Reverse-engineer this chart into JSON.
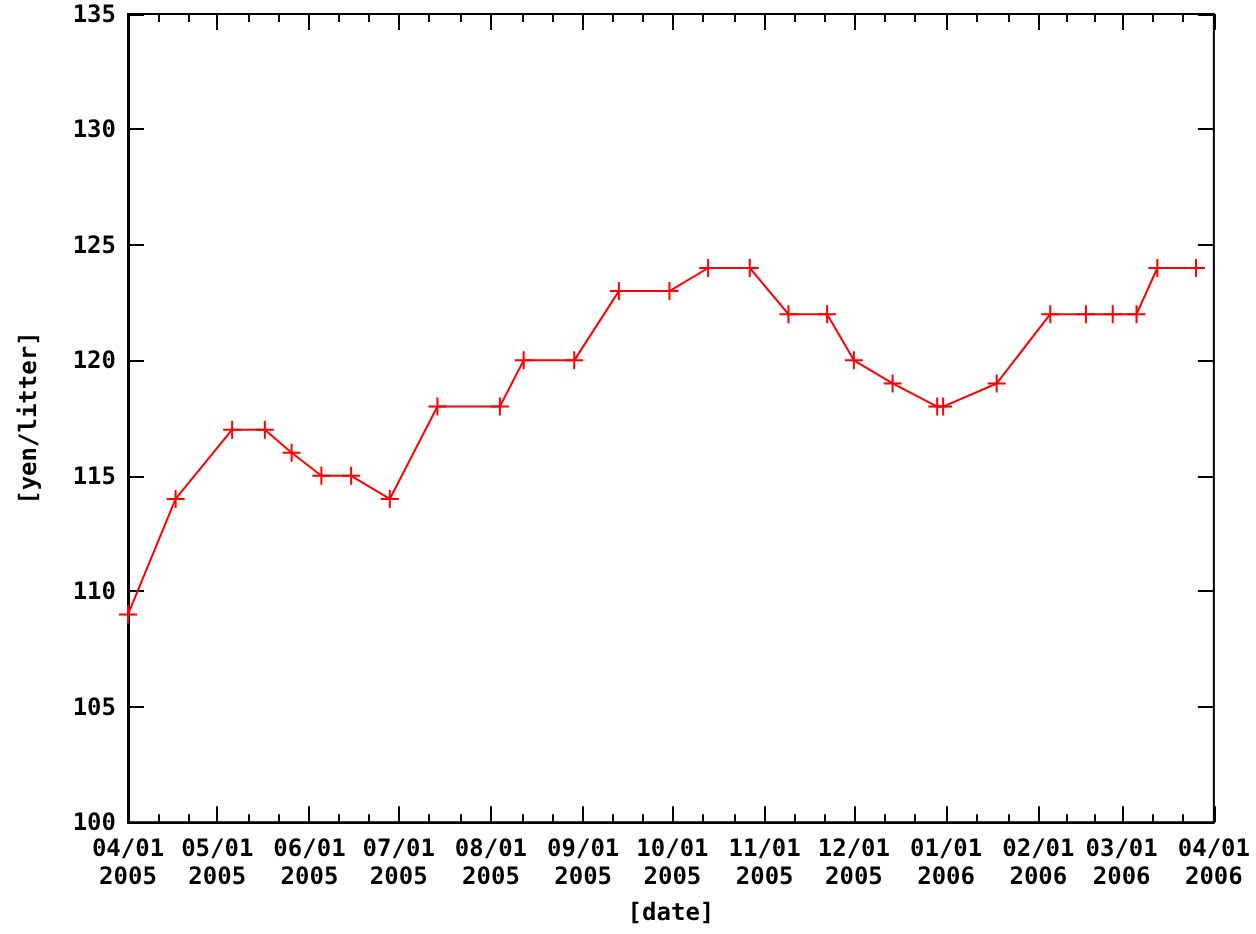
{
  "chart_data": {
    "type": "line",
    "xlabel": "[date]",
    "ylabel": "[yen/litter]",
    "color": "#ff0000",
    "marker": "cross",
    "line_style": "solid",
    "x": [
      "2005-04-01",
      "2005-04-17",
      "2005-05-06",
      "2005-05-17",
      "2005-05-26",
      "2005-06-05",
      "2005-06-15",
      "2005-06-28",
      "2005-07-14",
      "2005-08-04",
      "2005-08-12",
      "2005-08-29",
      "2005-09-13",
      "2005-09-30",
      "2005-10-13",
      "2005-10-27",
      "2005-11-09",
      "2005-11-22",
      "2005-12-01",
      "2005-12-14",
      "2005-12-29",
      "2005-12-31",
      "2006-01-18",
      "2006-02-05",
      "2006-02-17",
      "2006-02-26",
      "2006-03-06",
      "2006-03-13",
      "2006-03-26"
    ],
    "values": [
      109,
      114,
      117,
      117,
      116,
      115,
      115,
      114,
      118,
      118,
      120,
      120,
      123,
      123,
      124,
      124,
      122,
      122,
      120,
      119,
      118,
      118,
      119,
      122,
      122,
      122,
      122,
      124,
      124
    ],
    "xlim": [
      "2005-04-01",
      "2006-04-01"
    ],
    "xticks": [
      {
        "value": "2005-04-01",
        "label": "04/01\n2005"
      },
      {
        "value": "2005-05-01",
        "label": "05/01\n2005"
      },
      {
        "value": "2005-06-01",
        "label": "06/01\n2005"
      },
      {
        "value": "2005-07-01",
        "label": "07/01\n2005"
      },
      {
        "value": "2005-08-01",
        "label": "08/01\n2005"
      },
      {
        "value": "2005-09-01",
        "label": "09/01\n2005"
      },
      {
        "value": "2005-10-01",
        "label": "10/01\n2005"
      },
      {
        "value": "2005-11-01",
        "label": "11/01\n2005"
      },
      {
        "value": "2005-12-01",
        "label": "12/01\n2005"
      },
      {
        "value": "2006-01-01",
        "label": "01/01\n2006"
      },
      {
        "value": "2006-02-01",
        "label": "02/01\n2006"
      },
      {
        "value": "2006-03-01",
        "label": "03/01\n2006"
      },
      {
        "value": "2006-04-01",
        "label": "04/01\n2006"
      }
    ],
    "ylim": [
      100,
      135
    ],
    "yticks": [
      100,
      105,
      110,
      115,
      120,
      125,
      130,
      135
    ]
  }
}
